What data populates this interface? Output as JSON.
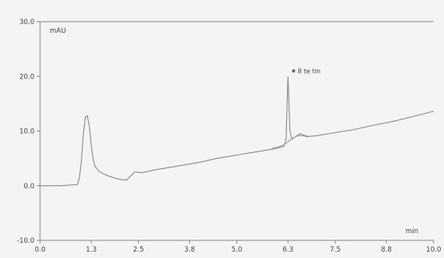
{
  "chart_data": {
    "type": "line",
    "title": "",
    "ylabel": "mAU",
    "xlabel": "min",
    "xlim": [
      0,
      10
    ],
    "ylim": [
      -10,
      30
    ],
    "x_ticks": [
      {
        "value": 0.0,
        "label": "0.0"
      },
      {
        "value": 1.3,
        "label": "1.3"
      },
      {
        "value": 2.5,
        "label": "2.5"
      },
      {
        "value": 3.8,
        "label": "3.8"
      },
      {
        "value": 5.0,
        "label": "5.0"
      },
      {
        "value": 6.3,
        "label": "6.3"
      },
      {
        "value": 7.5,
        "label": "7.5"
      },
      {
        "value": 8.8,
        "label": "8.8"
      },
      {
        "value": 10.0,
        "label": "10.0"
      }
    ],
    "y_ticks": [
      {
        "value": -10,
        "label": "-10.0"
      },
      {
        "value": 0,
        "label": "0.0"
      },
      {
        "value": 10,
        "label": "10.0"
      },
      {
        "value": 20,
        "label": "20.0"
      },
      {
        "value": 30,
        "label": "30.0"
      }
    ],
    "grid": false,
    "annotations": [
      {
        "x": 6.3,
        "y": 20.4,
        "label": "8 te tin"
      }
    ],
    "series": [
      {
        "x": [
          0.0,
          0.5,
          0.95,
          1.0,
          1.05,
          1.1,
          1.15,
          1.2,
          1.25,
          1.3,
          1.35,
          1.4,
          1.5,
          1.6,
          1.8,
          2.0,
          2.2,
          2.4,
          2.6,
          2.8,
          3.0,
          3.5,
          4.0,
          4.5,
          5.0,
          5.5,
          6.0,
          6.2,
          6.25,
          6.3,
          6.35,
          6.4,
          6.5,
          6.6,
          6.8,
          7.0,
          7.5,
          8.0,
          8.5,
          9.0,
          9.5,
          10.0
        ],
        "values": [
          0.0,
          0.0,
          0.2,
          1.5,
          4.5,
          9.5,
          12.5,
          12.8,
          11.0,
          7.5,
          4.8,
          3.5,
          2.6,
          2.2,
          1.6,
          1.2,
          1.0,
          2.5,
          2.4,
          2.7,
          3.0,
          3.6,
          4.2,
          5.0,
          5.6,
          6.2,
          6.8,
          7.2,
          8.5,
          20.0,
          10.0,
          8.5,
          9.0,
          9.5,
          9.0,
          9.1,
          9.7,
          10.3,
          11.1,
          11.8,
          12.7,
          13.6
        ]
      },
      {
        "x": [
          5.9,
          6.0,
          6.1,
          6.2,
          6.3,
          6.4,
          6.5,
          6.6,
          6.7,
          6.8
        ],
        "values": [
          6.9,
          7.0,
          7.2,
          7.5,
          8.0,
          8.6,
          9.0,
          9.2,
          9.1,
          8.9
        ]
      }
    ]
  }
}
